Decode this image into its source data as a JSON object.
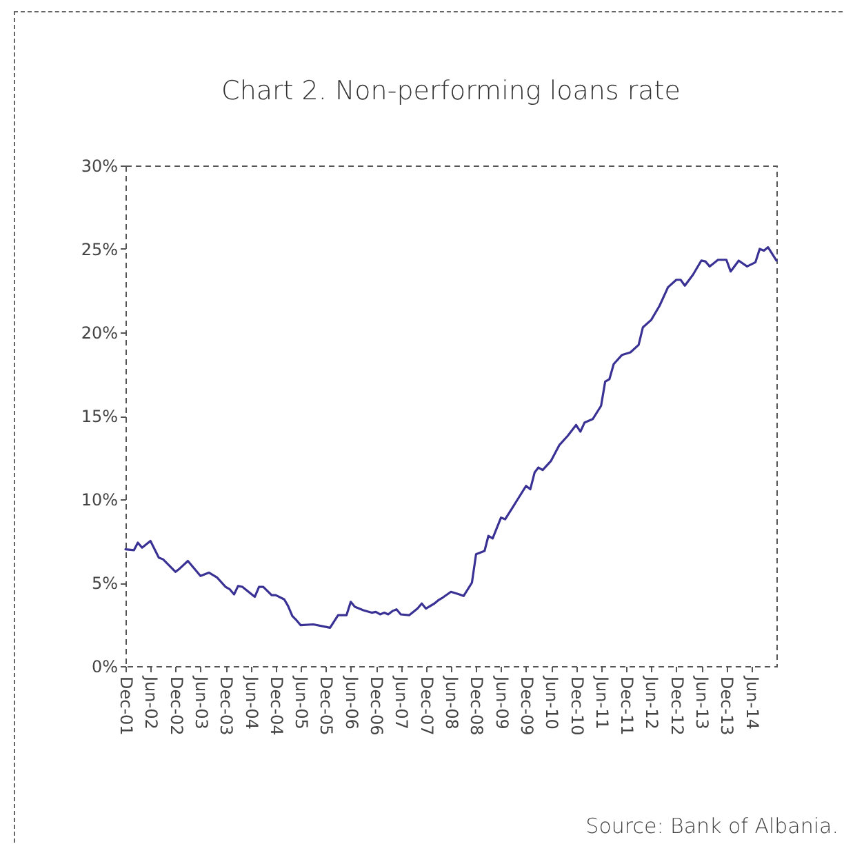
{
  "chart_data": {
    "type": "line",
    "title": "Chart 2. Non-performing loans rate",
    "annotations": [
      "Source: Bank of Albania."
    ],
    "x": [
      "2001-12",
      "2002-02",
      "2002-03",
      "2002-04",
      "2002-06",
      "2002-08",
      "2002-09",
      "2002-12",
      "2003-01",
      "2003-03",
      "2003-06",
      "2003-08",
      "2003-10",
      "2003-12",
      "2004-01",
      "2004-02",
      "2004-03",
      "2004-04",
      "2004-07",
      "2004-08",
      "2004-09",
      "2004-11",
      "2004-12",
      "2005-02",
      "2005-03",
      "2005-04",
      "2005-05",
      "2005-06",
      "2005-09",
      "2005-12",
      "2006-01",
      "2006-03",
      "2006-05",
      "2006-06",
      "2006-07",
      "2006-09",
      "2006-11",
      "2006-12",
      "2007-01",
      "2007-02",
      "2007-03",
      "2007-04",
      "2007-05",
      "2007-06",
      "2007-08",
      "2007-10",
      "2007-11",
      "2007-12",
      "2008-02",
      "2008-03",
      "2008-04",
      "2008-06",
      "2008-08",
      "2008-09",
      "2008-11",
      "2008-12",
      "2009-02",
      "2009-03",
      "2009-04",
      "2009-06",
      "2009-07",
      "2009-09",
      "2009-10",
      "2009-12",
      "2010-01",
      "2010-02",
      "2010-03",
      "2010-04",
      "2010-06",
      "2010-08",
      "2010-10",
      "2010-12",
      "2011-01",
      "2011-02",
      "2011-04",
      "2011-06",
      "2011-07",
      "2011-08",
      "2011-09",
      "2011-11",
      "2012-01",
      "2012-03",
      "2012-04",
      "2012-06",
      "2012-08",
      "2012-10",
      "2012-12",
      "2013-01",
      "2013-02",
      "2013-04",
      "2013-06",
      "2013-07",
      "2013-08",
      "2013-10",
      "2013-12",
      "2014-01",
      "2014-03",
      "2014-05",
      "2014-07",
      "2014-08",
      "2014-09",
      "2014-10",
      "2014-12"
    ],
    "series": [
      {
        "color": "#3a3194",
        "values": [
          7.0,
          6.95,
          7.4,
          7.1,
          7.5,
          6.5,
          6.4,
          5.65,
          5.85,
          6.3,
          5.4,
          5.6,
          5.3,
          4.75,
          4.6,
          4.3,
          4.8,
          4.75,
          4.15,
          4.75,
          4.75,
          4.25,
          4.25,
          4.0,
          3.6,
          3.0,
          2.75,
          2.45,
          2.5,
          2.35,
          2.3,
          3.05,
          3.05,
          3.85,
          3.55,
          3.35,
          3.2,
          3.25,
          3.1,
          3.2,
          3.1,
          3.3,
          3.4,
          3.1,
          3.05,
          3.45,
          3.75,
          3.45,
          3.75,
          3.95,
          4.1,
          4.45,
          4.3,
          4.2,
          5.0,
          6.7,
          6.9,
          7.8,
          7.65,
          8.9,
          8.8,
          9.6,
          10.0,
          10.8,
          10.6,
          11.6,
          11.9,
          11.75,
          12.3,
          13.25,
          13.8,
          14.45,
          14.05,
          14.6,
          14.8,
          15.6,
          17.05,
          17.2,
          18.1,
          18.65,
          18.8,
          19.25,
          20.3,
          20.75,
          21.6,
          22.7,
          23.15,
          23.15,
          22.8,
          23.45,
          24.3,
          24.25,
          23.95,
          24.35,
          24.35,
          23.65,
          24.3,
          23.95,
          24.2,
          25.0,
          24.9,
          25.1,
          24.3
        ]
      }
    ],
    "xlim": [
      "2001-12",
      "2014-12"
    ],
    "xticks": [
      {
        "value": "2001-12",
        "label": "Dec-01"
      },
      {
        "value": "2002-06",
        "label": "Jun-02"
      },
      {
        "value": "2002-12",
        "label": "Dec-02"
      },
      {
        "value": "2003-06",
        "label": "Jun-03"
      },
      {
        "value": "2003-12",
        "label": "Dec-03"
      },
      {
        "value": "2004-06",
        "label": "Jun-04"
      },
      {
        "value": "2004-12",
        "label": "Dec-04"
      },
      {
        "value": "2005-06",
        "label": "Jun-05"
      },
      {
        "value": "2005-12",
        "label": "Dec-05"
      },
      {
        "value": "2006-06",
        "label": "Jun-06"
      },
      {
        "value": "2006-12",
        "label": "Dec-06"
      },
      {
        "value": "2007-06",
        "label": "Jun-07"
      },
      {
        "value": "2007-12",
        "label": "Dec-07"
      },
      {
        "value": "2008-06",
        "label": "Jun-08"
      },
      {
        "value": "2008-12",
        "label": "Dec-08"
      },
      {
        "value": "2009-06",
        "label": "Jun-09"
      },
      {
        "value": "2009-12",
        "label": "Dec-09"
      },
      {
        "value": "2010-06",
        "label": "Jun-10"
      },
      {
        "value": "2010-12",
        "label": "Dec-10"
      },
      {
        "value": "2011-06",
        "label": "Jun-11"
      },
      {
        "value": "2011-12",
        "label": "Dec-11"
      },
      {
        "value": "2012-06",
        "label": "Jun-12"
      },
      {
        "value": "2012-12",
        "label": "Dec-12"
      },
      {
        "value": "2013-06",
        "label": "Jun-13"
      },
      {
        "value": "2013-12",
        "label": "Dec-13"
      },
      {
        "value": "2014-06",
        "label": "Jun-14"
      }
    ],
    "ylim": [
      0,
      30
    ],
    "yticks": [
      {
        "value": 0,
        "label": "0%"
      },
      {
        "value": 5,
        "label": "5%"
      },
      {
        "value": 10,
        "label": "10%"
      },
      {
        "value": 15,
        "label": "15%"
      },
      {
        "value": 20,
        "label": "20%"
      },
      {
        "value": 25,
        "label": "25%"
      },
      {
        "value": 30,
        "label": "30%"
      }
    ],
    "grid": false,
    "marker": "none",
    "line_style": "solid"
  }
}
